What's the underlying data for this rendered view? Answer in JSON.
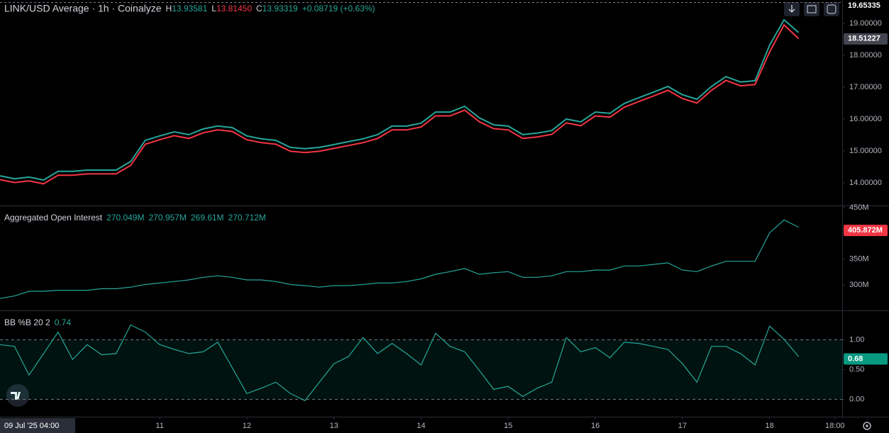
{
  "chart_data": [
    {
      "type": "line",
      "title": "LINK/USD Average · 1h · Coinalyze",
      "legend": [
        {
          "label": "H",
          "value": "13.93581",
          "color": "#26a69a"
        },
        {
          "label": "L",
          "value": "13.81450",
          "color": "#f23645"
        },
        {
          "label": "C",
          "value": "13.93319",
          "color": "#26a69a"
        },
        {
          "label": "",
          "value": "+0.08719 (+0.63%)",
          "color": "#26a69a"
        }
      ],
      "xlim": [
        0,
        232
      ],
      "x": [
        0,
        4,
        8,
        12,
        16,
        20,
        24,
        28,
        32,
        36,
        40,
        44,
        48,
        52,
        56,
        60,
        64,
        68,
        72,
        76,
        80,
        84,
        88,
        92,
        96,
        100,
        104,
        108,
        112,
        116,
        120,
        124,
        128,
        132,
        136,
        140,
        144,
        148,
        152,
        156,
        160,
        164,
        168,
        172,
        176,
        180,
        184,
        188,
        192,
        196,
        200,
        204,
        208,
        212,
        216,
        220
      ],
      "series": [
        {
          "name": "High",
          "color": "#26a69a",
          "values": [
            14.22,
            14.13,
            14.18,
            14.09,
            14.36,
            14.36,
            14.4,
            14.4,
            14.4,
            14.67,
            15.33,
            15.47,
            15.6,
            15.51,
            15.69,
            15.78,
            15.73,
            15.47,
            15.38,
            15.33,
            15.11,
            15.07,
            15.11,
            15.2,
            15.29,
            15.38,
            15.51,
            15.78,
            15.78,
            15.87,
            16.22,
            16.22,
            16.4,
            16.04,
            15.82,
            15.78,
            15.51,
            15.56,
            15.64,
            16.0,
            15.91,
            16.22,
            16.18,
            16.49,
            16.67,
            16.84,
            17.02,
            16.76,
            16.62,
            17.02,
            17.33,
            17.16,
            17.2,
            18.31,
            19.11,
            18.71
          ]
        },
        {
          "name": "Low",
          "color": "#f23645",
          "values": [
            14.1,
            14.01,
            14.06,
            13.97,
            14.24,
            14.24,
            14.28,
            14.28,
            14.28,
            14.55,
            15.21,
            15.35,
            15.48,
            15.39,
            15.57,
            15.66,
            15.61,
            15.35,
            15.26,
            15.21,
            14.99,
            14.95,
            14.99,
            15.08,
            15.17,
            15.26,
            15.39,
            15.66,
            15.66,
            15.75,
            16.1,
            16.1,
            16.28,
            15.92,
            15.7,
            15.66,
            15.39,
            15.44,
            15.52,
            15.88,
            15.79,
            16.1,
            16.06,
            16.37,
            16.55,
            16.72,
            16.9,
            16.64,
            16.5,
            16.9,
            17.21,
            17.04,
            17.08,
            18.1,
            18.95,
            18.52
          ]
        }
      ],
      "ylim": [
        13.29,
        19.73
      ],
      "yticks": [
        {
          "value": 14,
          "label": "14.00000"
        },
        {
          "value": 15,
          "label": "15.00000"
        },
        {
          "value": 16,
          "label": "16.00000"
        },
        {
          "value": 17,
          "label": "17.00000"
        },
        {
          "value": 18,
          "label": "18.00000"
        },
        {
          "value": 19,
          "label": "19.00000"
        }
      ],
      "price_tags": [
        {
          "value": 19.65335,
          "color": "#000000",
          "line": "dashed"
        },
        {
          "value": 18.51227,
          "color": "#434651"
        }
      ]
    },
    {
      "type": "line",
      "title": "Aggregated Open Interest",
      "legend": [
        {
          "label": "",
          "value": "270.049M",
          "color": "#26a69a"
        },
        {
          "label": "",
          "value": "270.957M",
          "color": "#26a69a"
        },
        {
          "label": "",
          "value": "269.61M",
          "color": "#26a69a"
        },
        {
          "label": "",
          "value": "270.712M",
          "color": "#26a69a"
        }
      ],
      "xlim": [
        0,
        232
      ],
      "x": [
        0,
        4,
        8,
        12,
        16,
        20,
        24,
        28,
        32,
        36,
        40,
        44,
        48,
        52,
        56,
        60,
        64,
        68,
        72,
        76,
        80,
        84,
        88,
        92,
        96,
        100,
        104,
        108,
        112,
        116,
        120,
        124,
        128,
        132,
        136,
        140,
        144,
        148,
        152,
        156,
        160,
        164,
        168,
        172,
        176,
        180,
        184,
        188,
        192,
        196,
        200,
        204,
        208,
        212,
        216,
        220
      ],
      "series": [
        {
          "name": "Open Interest",
          "color": "#26a69a",
          "values": [
            274,
            279,
            288,
            288,
            290,
            290,
            290,
            293,
            293,
            296,
            301,
            304,
            307,
            310,
            315,
            318,
            315,
            310,
            310,
            307,
            301,
            299,
            296,
            299,
            299,
            301,
            304,
            304,
            307,
            312,
            321,
            326,
            332,
            321,
            324,
            326,
            315,
            315,
            318,
            326,
            326,
            329,
            329,
            337,
            337,
            340,
            343,
            329,
            326,
            337,
            346,
            346,
            346,
            401,
            426,
            412
          ]
        }
      ],
      "ylim": [
        251,
        454
      ],
      "yticks": [
        {
          "value": 300,
          "label": "300M"
        },
        {
          "value": 350,
          "label": "350M"
        },
        {
          "value": 450,
          "label": "450M"
        }
      ],
      "price_tags": [
        {
          "value": 405.872,
          "label": "405.872M",
          "color": "#f23645"
        }
      ]
    },
    {
      "type": "line",
      "title": "BB %B 20 2",
      "legend": [
        {
          "label": "",
          "value": "0.74",
          "color": "#26a69a"
        }
      ],
      "xlim": [
        0,
        232
      ],
      "x": [
        0,
        4,
        8,
        12,
        16,
        20,
        24,
        28,
        32,
        36,
        40,
        44,
        48,
        52,
        56,
        60,
        64,
        68,
        72,
        76,
        80,
        84,
        88,
        92,
        96,
        100,
        104,
        108,
        112,
        116,
        120,
        124,
        128,
        132,
        136,
        140,
        144,
        148,
        152,
        156,
        160,
        164,
        168,
        172,
        176,
        180,
        184,
        188,
        192,
        196,
        200,
        204,
        208,
        212,
        216,
        220
      ],
      "series": [
        {
          "name": "%B",
          "color": "#26a69a",
          "values": [
            0.92,
            0.89,
            0.41,
            0.77,
            1.13,
            0.67,
            0.92,
            0.75,
            0.77,
            1.25,
            1.13,
            0.92,
            0.84,
            0.77,
            0.8,
            0.96,
            0.53,
            0.1,
            0.19,
            0.29,
            0.1,
            -0.02,
            0.29,
            0.6,
            0.72,
            1.04,
            0.77,
            0.94,
            0.77,
            0.58,
            1.11,
            0.89,
            0.8,
            0.49,
            0.17,
            0.22,
            0.05,
            0.19,
            0.29,
            1.04,
            0.8,
            0.87,
            0.7,
            0.96,
            0.94,
            0.89,
            0.84,
            0.6,
            0.29,
            0.89,
            0.89,
            0.77,
            0.58,
            1.23,
            1.01,
            0.72
          ]
        }
      ],
      "ylim": [
        -0.289,
        1.494
      ],
      "yticks": [
        {
          "value": 0,
          "label": "0.00"
        },
        {
          "value": 0.5,
          "label": "0.50"
        },
        {
          "value": 1,
          "label": "1.00"
        }
      ],
      "bands": [
        0,
        1
      ],
      "price_tags": [
        {
          "value": 0.68,
          "color": "#089981"
        }
      ],
      "xticks": [
        {
          "value": 0,
          "label": "09 Jul '25  04:00"
        },
        {
          "value": 44,
          "label": "11"
        },
        {
          "value": 68,
          "label": "12"
        },
        {
          "value": 92,
          "label": "13"
        },
        {
          "value": 116,
          "label": "14"
        },
        {
          "value": 140,
          "label": "15"
        },
        {
          "value": 164,
          "label": "16"
        },
        {
          "value": 188,
          "label": "17"
        },
        {
          "value": 212,
          "label": "18"
        },
        {
          "value": 230,
          "label": "18:00"
        }
      ]
    }
  ]
}
